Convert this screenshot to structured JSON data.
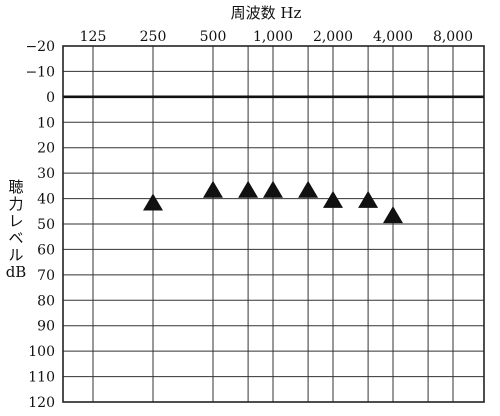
{
  "chart_data": {
    "type": "scatter",
    "title": "周波数 Hz",
    "ylabel_lines": [
      "聴",
      "力",
      "レ",
      "ベ",
      "ル",
      "dB"
    ],
    "x_categories": [
      "125",
      "250",
      "500",
      "750",
      "1,000",
      "1,500",
      "2,000",
      "3,000",
      "4,000",
      "6,000",
      "8,000"
    ],
    "x_tick_labels": [
      "125",
      "250",
      "500",
      "1,000",
      "2,000",
      "4,000",
      "8,000"
    ],
    "y_ticks": [
      -20,
      -10,
      0,
      10,
      20,
      30,
      40,
      50,
      60,
      70,
      80,
      90,
      100,
      110,
      120
    ],
    "y_tick_labels": [
      "−20",
      "−10",
      "0",
      "10",
      "20",
      "30",
      "40",
      "50",
      "60",
      "70",
      "80",
      "90",
      "100",
      "110",
      "120"
    ],
    "ylim": [
      -20,
      120
    ],
    "y_inverted": true,
    "grid": true,
    "emphasized_line": 0,
    "marker": "filled-triangle",
    "points": [
      {
        "x": "250",
        "y": 42
      },
      {
        "x": "500",
        "y": 37
      },
      {
        "x": "750",
        "y": 37
      },
      {
        "x": "1,000",
        "y": 37
      },
      {
        "x": "1,500",
        "y": 37
      },
      {
        "x": "2,000",
        "y": 41
      },
      {
        "x": "3,000",
        "y": 41
      },
      {
        "x": "4,000",
        "y": 47
      }
    ]
  }
}
